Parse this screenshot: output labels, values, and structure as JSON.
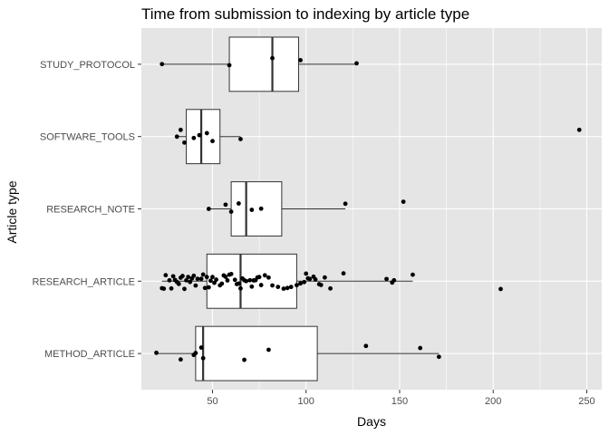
{
  "chart_data": {
    "type": "boxplot",
    "title": "Time from submission to indexing by article type",
    "xlabel": "Days",
    "ylabel": "Article type",
    "xlim": [
      12,
      258
    ],
    "xticks": [
      50,
      100,
      150,
      200,
      250
    ],
    "grid": true,
    "orientation": "horizontal",
    "colors": {
      "panel": "#e5e5e5",
      "grid": "#ffffff",
      "box_fill": "#ffffff",
      "box_stroke": "#333333",
      "point": "#000000",
      "tick": "#333333"
    },
    "categories": [
      "STUDY_PROTOCOL",
      "SOFTWARE_TOOLS",
      "RESEARCH_NOTE",
      "RESEARCH_ARTICLE",
      "METHOD_ARTICLE"
    ],
    "boxes": [
      {
        "category": "STUDY_PROTOCOL",
        "min": 23,
        "q1": 59,
        "median": 82,
        "q3": 96,
        "max": 126
      },
      {
        "category": "SOFTWARE_TOOLS",
        "min": 31,
        "q1": 36,
        "median": 44,
        "q3": 54,
        "max": 65
      },
      {
        "category": "RESEARCH_NOTE",
        "min": 48,
        "q1": 60,
        "median": 68,
        "q3": 87,
        "max": 121
      },
      {
        "category": "RESEARCH_ARTICLE",
        "min": 23,
        "q1": 47,
        "median": 65,
        "q3": 95,
        "max": 157
      },
      {
        "category": "METHOD_ARTICLE",
        "min": 20,
        "q1": 41,
        "median": 45,
        "q3": 106,
        "max": 171
      }
    ],
    "points": [
      {
        "category": "STUDY_PROTOCOL",
        "values": [
          23,
          59,
          82,
          97,
          127
        ]
      },
      {
        "category": "SOFTWARE_TOOLS",
        "values": [
          31,
          33,
          35,
          40,
          43,
          47,
          50,
          65,
          246
        ]
      },
      {
        "category": "RESEARCH_NOTE",
        "values": [
          48,
          57,
          60,
          64,
          71,
          76,
          121,
          152
        ]
      },
      {
        "category": "RESEARCH_ARTICLE",
        "values": [
          23,
          24,
          25,
          27,
          28,
          29,
          30,
          31,
          32,
          33,
          34,
          35,
          36,
          37,
          38,
          39,
          40,
          41,
          42,
          44,
          45,
          46,
          47,
          48,
          49,
          50,
          51,
          52,
          54,
          55,
          56,
          57,
          58,
          59,
          60,
          62,
          63,
          64,
          65,
          66,
          67,
          68,
          70,
          71,
          72,
          73,
          74,
          75,
          76,
          78,
          80,
          82,
          85,
          88,
          90,
          92,
          95,
          97,
          99,
          100,
          101,
          102,
          104,
          105,
          107,
          108,
          110,
          113,
          120,
          143,
          146,
          147,
          157,
          204
        ]
      },
      {
        "category": "METHOD_ARTICLE",
        "values": [
          20,
          33,
          40,
          41,
          44,
          45,
          67,
          80,
          132,
          161,
          171
        ]
      }
    ]
  }
}
